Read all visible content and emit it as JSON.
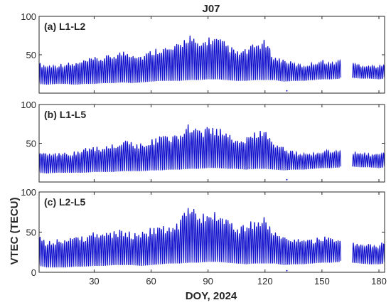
{
  "chart_data": {
    "type": "line",
    "title": "J07",
    "xlabel": "DOY, 2024",
    "ylabel": "VTEC (TECU)",
    "xlim": [
      1,
      183
    ],
    "xticks": [
      30,
      60,
      90,
      120,
      150,
      180
    ],
    "series_color": "#1010cc",
    "panels": [
      {
        "label": "(a) L1-L2",
        "ylim": [
          0,
          100
        ],
        "yticks": [
          50,
          100
        ],
        "gap": [
          160,
          166
        ],
        "outliers": [
          [
            131.5,
            3
          ]
        ],
        "series": {
          "x": [
            1,
            5,
            10,
            15,
            20,
            25,
            30,
            35,
            40,
            45,
            50,
            55,
            60,
            65,
            70,
            75,
            80,
            85,
            90,
            95,
            100,
            105,
            110,
            115,
            120,
            125,
            130,
            135,
            140,
            145,
            150,
            155,
            160,
            166,
            170,
            175,
            180,
            183
          ],
          "upper": [
            40,
            37,
            38,
            40,
            40,
            44,
            47,
            48,
            52,
            56,
            55,
            50,
            57,
            62,
            60,
            66,
            80,
            64,
            75,
            73,
            66,
            55,
            58,
            66,
            70,
            48,
            45,
            40,
            37,
            40,
            44,
            40,
            45,
            40,
            38,
            37,
            36,
            38
          ],
          "lower": [
            12,
            11,
            12,
            12,
            11,
            12,
            12,
            13,
            13,
            14,
            13,
            14,
            15,
            16,
            16,
            16,
            17,
            17,
            18,
            18,
            17,
            16,
            16,
            17,
            17,
            17,
            15,
            16,
            16,
            17,
            18,
            18,
            19,
            20,
            19,
            19,
            18,
            19
          ]
        }
      },
      {
        "label": "(b) L1-L5",
        "ylim": [
          0,
          100
        ],
        "yticks": [
          50,
          100
        ],
        "gap": [
          160,
          166
        ],
        "outliers": [
          [
            131.5,
            3
          ]
        ],
        "series": {
          "x": [
            1,
            5,
            10,
            15,
            20,
            25,
            30,
            35,
            40,
            45,
            50,
            55,
            60,
            65,
            70,
            75,
            80,
            85,
            90,
            95,
            100,
            105,
            110,
            115,
            120,
            125,
            130,
            135,
            140,
            145,
            150,
            155,
            160,
            166,
            170,
            175,
            180,
            183
          ],
          "upper": [
            40,
            37,
            37,
            38,
            40,
            44,
            45,
            47,
            50,
            55,
            52,
            50,
            56,
            60,
            60,
            66,
            78,
            66,
            73,
            70,
            66,
            55,
            58,
            66,
            70,
            48,
            45,
            40,
            37,
            38,
            42,
            40,
            43,
            40,
            38,
            37,
            36,
            38
          ],
          "lower": [
            12,
            11,
            12,
            12,
            12,
            12,
            13,
            13,
            13,
            14,
            14,
            14,
            15,
            15,
            16,
            16,
            17,
            17,
            18,
            18,
            17,
            17,
            16,
            17,
            17,
            16,
            15,
            16,
            16,
            17,
            18,
            18,
            19,
            20,
            19,
            19,
            18,
            19
          ]
        }
      },
      {
        "label": "(c) L2-L5",
        "ylim": [
          0,
          100
        ],
        "yticks": [
          0,
          50,
          100
        ],
        "gap": [
          160,
          166
        ],
        "outliers": [
          [
            131.5,
            2
          ]
        ],
        "series": {
          "x": [
            1,
            5,
            10,
            15,
            20,
            25,
            30,
            35,
            40,
            45,
            50,
            55,
            60,
            65,
            70,
            75,
            80,
            85,
            90,
            95,
            100,
            105,
            110,
            115,
            120,
            125,
            130,
            135,
            140,
            145,
            150,
            155,
            160,
            166,
            170,
            175,
            180,
            183
          ],
          "upper": [
            45,
            40,
            42,
            44,
            46,
            46,
            50,
            50,
            52,
            54,
            50,
            50,
            56,
            58,
            60,
            66,
            90,
            68,
            78,
            75,
            70,
            57,
            60,
            68,
            70,
            52,
            48,
            45,
            44,
            42,
            45,
            44,
            45,
            38,
            36,
            35,
            35,
            40
          ],
          "lower": [
            8,
            6,
            6,
            6,
            7,
            7,
            8,
            8,
            9,
            9,
            9,
            8,
            9,
            10,
            11,
            11,
            12,
            12,
            13,
            13,
            12,
            11,
            10,
            11,
            11,
            11,
            9,
            10,
            10,
            11,
            12,
            12,
            13,
            12,
            11,
            10,
            10,
            11
          ]
        }
      }
    ]
  }
}
